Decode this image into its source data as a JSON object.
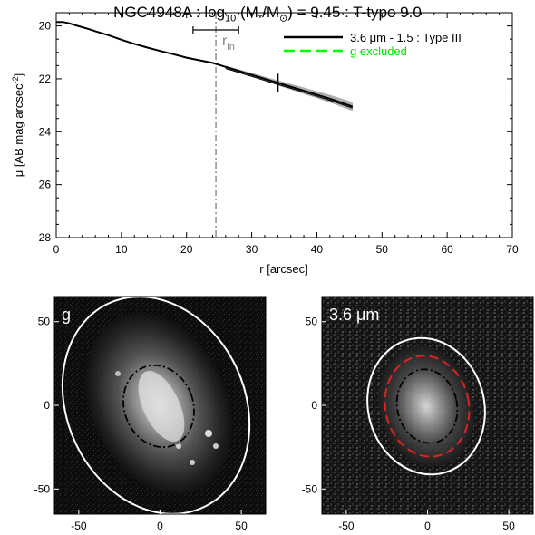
{
  "title": {
    "object": "NGC4948A",
    "log": "log",
    "sub10": "10",
    "mass_open": " (M",
    "star": "*",
    "over": "/M",
    "sun": "⊙",
    "mass_close": ") = 9.45 : T-type 9.0",
    "separator": " : "
  },
  "colors": {
    "profile": "#000000",
    "profile_shade": "#9a9a9a",
    "g_excluded": "#00ff00",
    "rin_line": "#555555",
    "ellipse_outer": "#ffffff",
    "ellipse_inner": "#000000",
    "ellipse_red": "#dd2222"
  },
  "chart_data": [
    {
      "type": "line",
      "xlabel": "r [arcsec]",
      "ylabel_main": "μ [AB mag arcsec",
      "ylabel_sup": "-2",
      "ylabel_close": "]",
      "xlim": [
        0,
        70
      ],
      "ylim": [
        28,
        19.5
      ],
      "y_inverted": true,
      "xticks": [
        0,
        10,
        20,
        30,
        40,
        50,
        60,
        70
      ],
      "yticks": [
        20,
        22,
        24,
        26,
        28
      ],
      "series": [
        {
          "name": "3.6 μm - 1.5 : Type III",
          "x": [
            0,
            1,
            2,
            3,
            4,
            5,
            6,
            8,
            10,
            12,
            14,
            16,
            18,
            20,
            22,
            24,
            26,
            28,
            30,
            32,
            34,
            36,
            38,
            40,
            42,
            44,
            45.5
          ],
          "y": [
            19.85,
            19.85,
            19.9,
            19.98,
            20.05,
            20.12,
            20.2,
            20.35,
            20.52,
            20.68,
            20.82,
            20.95,
            21.07,
            21.2,
            21.3,
            21.4,
            21.55,
            21.7,
            21.85,
            22.0,
            22.15,
            22.3,
            22.45,
            22.6,
            22.75,
            22.92,
            23.05
          ]
        }
      ],
      "legend": [
        {
          "label": "3.6 μm - 1.5 : Type III",
          "style": "solid"
        },
        {
          "label": "g excluded",
          "style": "dashed"
        }
      ],
      "annotations": {
        "r_in_label": "r",
        "r_in_sub": "in",
        "r_in": 24.5,
        "r_in_err": [
          21,
          28
        ],
        "break_marker": 34
      }
    },
    {
      "type": "image",
      "label": "g",
      "xticks": [
        -50,
        0,
        50
      ],
      "yticks": [
        50,
        0,
        -50
      ],
      "xlim": [
        -65,
        65
      ],
      "ylim": [
        -65,
        65
      ]
    },
    {
      "type": "image",
      "label": "3.6 μm",
      "xticks": [
        -50,
        0,
        50
      ],
      "yticks": [
        50,
        0,
        -50
      ],
      "xlim": [
        -65,
        65
      ],
      "ylim": [
        -65,
        65
      ]
    }
  ]
}
